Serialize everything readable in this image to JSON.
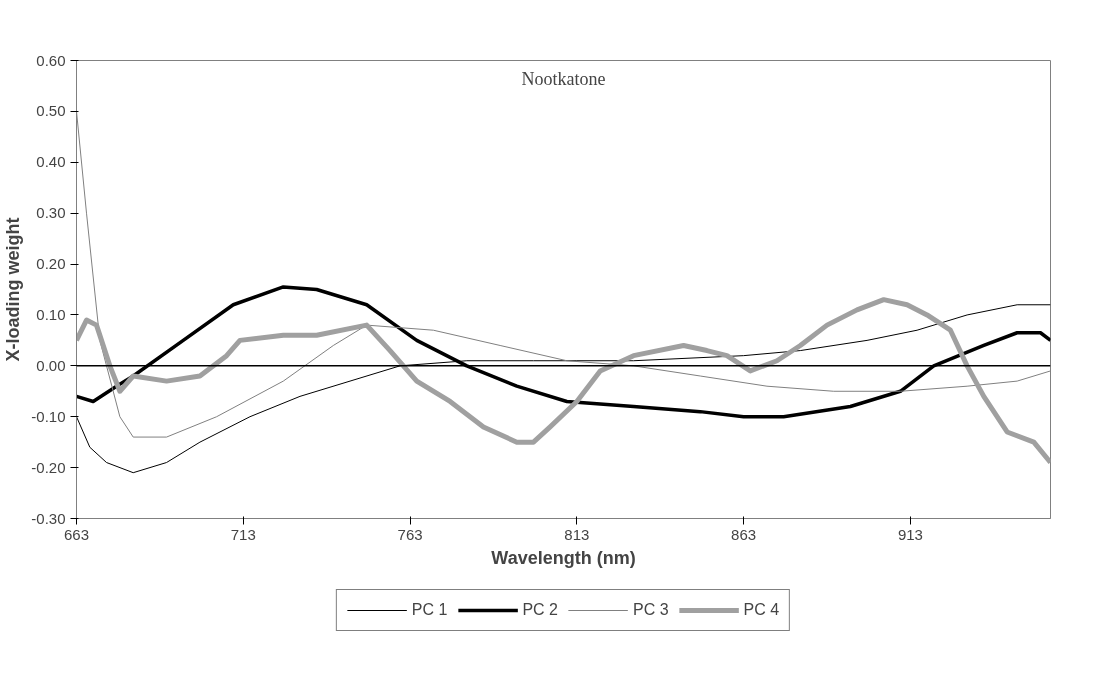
{
  "chart_data": {
    "type": "line",
    "title": "Nootkatone",
    "xlabel": "Wavelength (nm)",
    "ylabel": "X-loading weight",
    "xlim": [
      663,
      955
    ],
    "xticks": [
      663,
      713,
      763,
      813,
      863,
      913
    ],
    "ylim": [
      -0.3,
      0.6
    ],
    "yticks": [
      {
        "value": -0.3,
        "label": "-0.30"
      },
      {
        "value": -0.2,
        "label": "-0.20"
      },
      {
        "value": -0.1,
        "label": "-0.10"
      },
      {
        "value": 0,
        "label": "0.00"
      },
      {
        "value": 0.1,
        "label": "0.10"
      },
      {
        "value": 0.2,
        "label": "0.20"
      },
      {
        "value": 0.3,
        "label": "0.30"
      },
      {
        "value": 0.4,
        "label": "0.40"
      },
      {
        "value": 0.5,
        "label": "0.50"
      },
      {
        "value": 0.6,
        "label": "0.60"
      }
    ],
    "grid": false,
    "legend": "bottom",
    "marker": "none",
    "ref_lines": [
      {
        "axis": "y",
        "value": 0,
        "color": "#000000"
      }
    ],
    "series": [
      {
        "name": "PC 1",
        "color": "#000000",
        "x": [
          663,
          667,
          672,
          680,
          690,
          700,
          715,
          730,
          745,
          760,
          780,
          800,
          813,
          830,
          863,
          880,
          900,
          915,
          930,
          945,
          955
        ],
        "values": [
          -0.1,
          -0.16,
          -0.19,
          -0.21,
          -0.19,
          -0.15,
          -0.1,
          -0.06,
          -0.03,
          0.0,
          0.01,
          0.01,
          0.01,
          0.01,
          0.02,
          0.03,
          0.05,
          0.07,
          0.1,
          0.12,
          0.12
        ]
      },
      {
        "name": "PC 2",
        "color": "#000000",
        "x": [
          663,
          668,
          675,
          680,
          695,
          710,
          725,
          735,
          750,
          765,
          780,
          795,
          810,
          830,
          850,
          863,
          875,
          895,
          910,
          920,
          935,
          945,
          952,
          955
        ],
        "values": [
          -0.06,
          -0.07,
          -0.04,
          -0.02,
          0.05,
          0.12,
          0.155,
          0.15,
          0.12,
          0.05,
          0.0,
          -0.04,
          -0.07,
          -0.08,
          -0.09,
          -0.1,
          -0.1,
          -0.08,
          -0.05,
          0.0,
          0.04,
          0.065,
          0.065,
          0.05
        ]
      },
      {
        "name": "PC 3",
        "color": "#808080",
        "x": [
          663,
          666,
          670,
          676,
          680,
          690,
          705,
          725,
          740,
          750,
          770,
          790,
          810,
          830,
          850,
          870,
          890,
          910,
          930,
          945,
          955
        ],
        "values": [
          0.5,
          0.3,
          0.05,
          -0.1,
          -0.14,
          -0.14,
          -0.1,
          -0.03,
          0.04,
          0.08,
          0.07,
          0.04,
          0.01,
          0.0,
          -0.02,
          -0.04,
          -0.05,
          -0.05,
          -0.04,
          -0.03,
          -0.01
        ]
      },
      {
        "name": "PC 4",
        "color": "#a0a0a0",
        "x": [
          663,
          666,
          669,
          673,
          676,
          680,
          690,
          700,
          708,
          712,
          725,
          735,
          750,
          757,
          765,
          775,
          785,
          795,
          800,
          805,
          813,
          820,
          830,
          845,
          852,
          858,
          865,
          873,
          880,
          888,
          897,
          905,
          912,
          918,
          925,
          930,
          935,
          942,
          950,
          955
        ],
        "values": [
          0.05,
          0.09,
          0.08,
          0.0,
          -0.05,
          -0.02,
          -0.03,
          -0.02,
          0.02,
          0.05,
          0.06,
          0.06,
          0.08,
          0.03,
          -0.03,
          -0.07,
          -0.12,
          -0.15,
          -0.15,
          -0.12,
          -0.07,
          -0.01,
          0.02,
          0.04,
          0.03,
          0.02,
          -0.01,
          0.01,
          0.04,
          0.08,
          0.11,
          0.13,
          0.12,
          0.1,
          0.07,
          0.0,
          -0.06,
          -0.13,
          -0.15,
          -0.19
        ]
      }
    ]
  }
}
